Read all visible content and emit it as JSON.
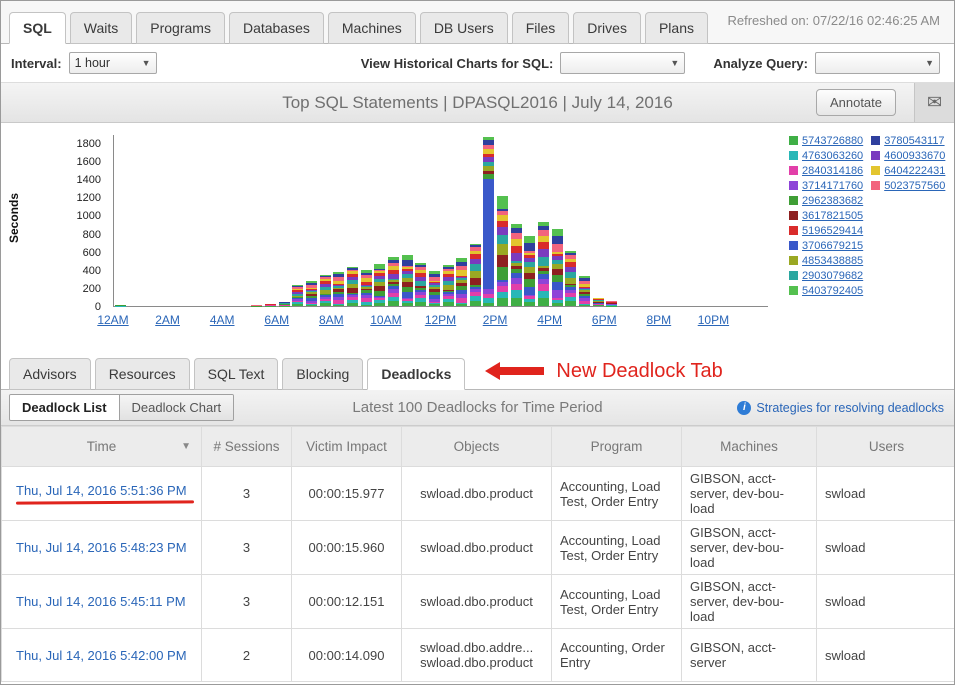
{
  "icons": {
    "mail": "✉",
    "caret": "▼",
    "sort_desc": "▼",
    "info": "i"
  },
  "header": {
    "tabs": [
      {
        "label": "SQL",
        "active": true
      },
      {
        "label": "Waits",
        "active": false
      },
      {
        "label": "Programs",
        "active": false
      },
      {
        "label": "Databases",
        "active": false
      },
      {
        "label": "Machines",
        "active": false
      },
      {
        "label": "DB Users",
        "active": false
      },
      {
        "label": "Files",
        "active": false
      },
      {
        "label": "Drives",
        "active": false
      },
      {
        "label": "Plans",
        "active": false
      }
    ],
    "refreshed": "Refreshed on: 07/22/16 02:46:25 AM"
  },
  "toolbar": {
    "interval_label": "Interval:",
    "interval_value": "1 hour",
    "historical_label": "View Historical Charts for SQL:",
    "historical_value": "",
    "analyze_label": "Analyze Query:",
    "analyze_value": ""
  },
  "chart_header": {
    "title": "Top SQL Statements | DPASQL2016 | July 14, 2016",
    "annotate_label": "Annotate"
  },
  "chart_data": {
    "type": "bar",
    "stacked": true,
    "title": "Top SQL Statements | DPASQL2016 | July 14, 2016",
    "ylabel": "Seconds",
    "ylim": [
      0,
      1900
    ],
    "yticks": [
      0,
      200,
      400,
      600,
      800,
      1000,
      1200,
      1400,
      1600,
      1800
    ],
    "x_tick_labels": [
      "12AM",
      "2AM",
      "4AM",
      "6AM",
      "8AM",
      "10AM",
      "12PM",
      "2PM",
      "4PM",
      "6PM",
      "8PM",
      "10PM"
    ],
    "bars": [
      {
        "hour": 0,
        "total": 15
      },
      {
        "hour": 5,
        "total": 8
      },
      {
        "hour": 5.5,
        "total": 25
      },
      {
        "hour": 6,
        "total": 50
      },
      {
        "hour": 6.5,
        "total": 230
      },
      {
        "hour": 7,
        "total": 280
      },
      {
        "hour": 7.5,
        "total": 345
      },
      {
        "hour": 8,
        "total": 380
      },
      {
        "hour": 8.5,
        "total": 430
      },
      {
        "hour": 9,
        "total": 395
      },
      {
        "hour": 9.5,
        "total": 470
      },
      {
        "hour": 10,
        "total": 540
      },
      {
        "hour": 10.5,
        "total": 565
      },
      {
        "hour": 11,
        "total": 480
      },
      {
        "hour": 11.5,
        "total": 390
      },
      {
        "hour": 12,
        "total": 450
      },
      {
        "hour": 12.5,
        "total": 530
      },
      {
        "hour": 13,
        "total": 690
      },
      {
        "hour": 13.5,
        "total": 1870
      },
      {
        "hour": 14,
        "total": 1220
      },
      {
        "hour": 14.5,
        "total": 905
      },
      {
        "hour": 15,
        "total": 780
      },
      {
        "hour": 15.5,
        "total": 930
      },
      {
        "hour": 16,
        "total": 850
      },
      {
        "hour": 16.5,
        "total": 610
      },
      {
        "hour": 17,
        "total": 330
      },
      {
        "hour": 17.5,
        "total": 95
      },
      {
        "hour": 18,
        "total": 60
      }
    ],
    "legend": [
      {
        "label": "5743726880",
        "color": "#3faf46"
      },
      {
        "label": "4763063260",
        "color": "#29b7b7"
      },
      {
        "label": "2840314186",
        "color": "#e23fa9"
      },
      {
        "label": "3714171760",
        "color": "#8e44d8"
      },
      {
        "label": "2962383682",
        "color": "#3f9e35"
      },
      {
        "label": "3617821505",
        "color": "#8e2020"
      },
      {
        "label": "5196529414",
        "color": "#d92b2b"
      },
      {
        "label": "3706679215",
        "color": "#3a58c9"
      },
      {
        "label": "4853438885",
        "color": "#9aa823"
      },
      {
        "label": "2903079682",
        "color": "#2ba7a0"
      },
      {
        "label": "5403792405",
        "color": "#54c04f"
      },
      {
        "label": "3780543117",
        "color": "#2f3f9e"
      },
      {
        "label": "4600933670",
        "color": "#7a3bbf"
      },
      {
        "label": "6404222431",
        "color": "#e3c52f"
      },
      {
        "label": "5023757560",
        "color": "#f2647e"
      }
    ],
    "legend_column_split": 11
  },
  "subtabs": {
    "items": [
      {
        "label": "Advisors",
        "active": false
      },
      {
        "label": "Resources",
        "active": false
      },
      {
        "label": "SQL Text",
        "active": false
      },
      {
        "label": "Blocking",
        "active": false
      },
      {
        "label": "Deadlocks",
        "active": true
      }
    ],
    "annotation_text": "New Deadlock Tab"
  },
  "deadlock_bar": {
    "list_toggle": "Deadlock List",
    "chart_toggle": "Deadlock Chart",
    "title": "Latest 100 Deadlocks for Time Period",
    "strategies_link": "Strategies for resolving deadlocks"
  },
  "table": {
    "columns": [
      "Time",
      "# Sessions",
      "Victim Impact",
      "Objects",
      "Program",
      "Machines",
      "Users"
    ],
    "sorted_column": "Time",
    "rows": [
      {
        "time": "Thu, Jul 14, 2016 5:51:36 PM",
        "sessions": "3",
        "impact": "00:00:15.977",
        "objects": [
          "swload.dbo.product"
        ],
        "program": "Accounting, Load Test, Order Entry",
        "machines": "GIBSON, acct-server, dev-bou-load",
        "users": "swload",
        "underlined": true
      },
      {
        "time": "Thu, Jul 14, 2016 5:48:23 PM",
        "sessions": "3",
        "impact": "00:00:15.960",
        "objects": [
          "swload.dbo.product"
        ],
        "program": "Accounting, Load Test, Order Entry",
        "machines": "GIBSON, acct-server, dev-bou-load",
        "users": "swload",
        "underlined": false
      },
      {
        "time": "Thu, Jul 14, 2016 5:45:11 PM",
        "sessions": "3",
        "impact": "00:00:12.151",
        "objects": [
          "swload.dbo.product"
        ],
        "program": "Accounting, Load Test, Order Entry",
        "machines": "GIBSON, acct-server, dev-bou-load",
        "users": "swload",
        "underlined": false
      },
      {
        "time": "Thu, Jul 14, 2016 5:42:00 PM",
        "sessions": "2",
        "impact": "00:00:14.090",
        "objects": [
          "swload.dbo.addre...",
          "swload.dbo.product"
        ],
        "program": "Accounting, Order Entry",
        "machines": "GIBSON, acct-server",
        "users": "swload",
        "underlined": false
      }
    ]
  }
}
